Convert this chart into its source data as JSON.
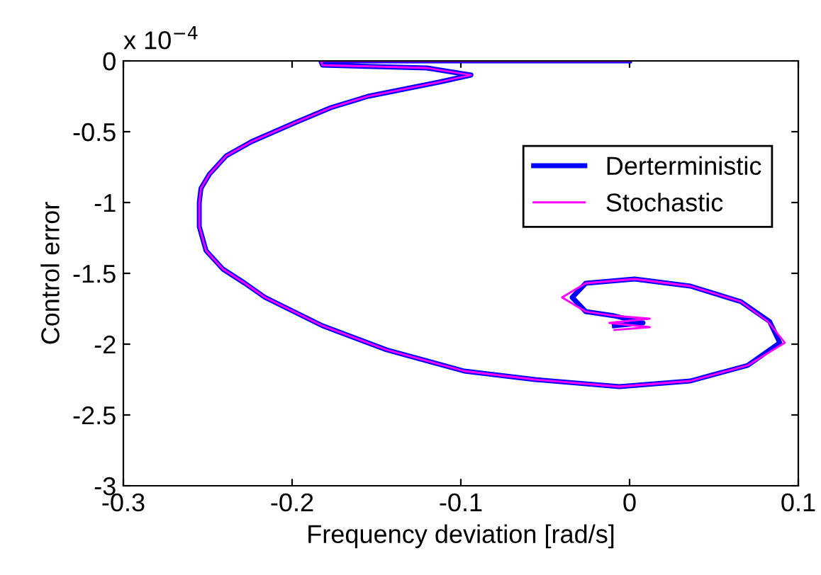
{
  "chart_data": {
    "type": "line",
    "xlabel": "Frequency deviation [rad/s]",
    "ylabel": "Control error",
    "annotations": [
      "x 10$^{−4}$"
    ],
    "xlim": [
      -0.3,
      0.1
    ],
    "xticks": [
      -0.3,
      -0.2,
      -0.1,
      0,
      0.1
    ],
    "ylim": [
      -3,
      0
    ],
    "yticks": [
      -3,
      -2.5,
      -2,
      -1.5,
      -1,
      -0.5,
      0
    ],
    "grid": false,
    "legend": "top right",
    "marker": "none",
    "line_style": "solid",
    "series": [
      {
        "name": "Derterministic",
        "color": "#0000ff",
        "x": [
          0,
          -0.183,
          -0.182,
          -0.12,
          -0.094,
          -0.113,
          -0.155,
          -0.177,
          -0.199,
          -0.224,
          -0.239,
          -0.249,
          -0.254,
          -0.255,
          -0.255,
          -0.251,
          -0.241,
          -0.228,
          -0.216,
          -0.182,
          -0.144,
          -0.098,
          -0.056,
          -0.006,
          0.036,
          0.07,
          0.089,
          0.083,
          0.066,
          0.036,
          0.003,
          -0.026,
          -0.034,
          -0.026,
          -0.009,
          0.008,
          -0.009
        ],
        "values": [
          0,
          0,
          -0.03,
          -0.05,
          -0.1,
          -0.15,
          -0.25,
          -0.33,
          -0.44,
          -0.57,
          -0.67,
          -0.8,
          -0.9,
          -1.0,
          -1.17,
          -1.34,
          -1.47,
          -1.57,
          -1.67,
          -1.87,
          -2.04,
          -2.19,
          -2.25,
          -2.3,
          -2.26,
          -2.15,
          -1.99,
          -1.84,
          -1.7,
          -1.59,
          -1.54,
          -1.57,
          -1.67,
          -1.77,
          -1.8,
          -1.85,
          -1.87
        ]
      },
      {
        "name": "Stochastic",
        "color": "#ff00ff",
        "x": [
          0,
          -0.183,
          -0.182,
          -0.12,
          -0.094,
          -0.113,
          -0.155,
          -0.177,
          -0.199,
          -0.224,
          -0.239,
          -0.249,
          -0.254,
          -0.255,
          -0.255,
          -0.251,
          -0.241,
          -0.228,
          -0.216,
          -0.182,
          -0.144,
          -0.098,
          -0.056,
          -0.006,
          0.036,
          0.07,
          0.092,
          0.082,
          0.066,
          0.036,
          0.003,
          -0.026,
          -0.04,
          -0.026,
          -0.009,
          0.012,
          -0.012,
          0.012,
          -0.009
        ],
        "values": [
          0,
          0,
          -0.03,
          -0.05,
          -0.1,
          -0.15,
          -0.25,
          -0.33,
          -0.44,
          -0.57,
          -0.67,
          -0.8,
          -0.9,
          -1.0,
          -1.17,
          -1.34,
          -1.47,
          -1.57,
          -1.67,
          -1.87,
          -2.04,
          -2.19,
          -2.25,
          -2.3,
          -2.26,
          -2.15,
          -1.99,
          -1.84,
          -1.7,
          -1.59,
          -1.54,
          -1.57,
          -1.67,
          -1.77,
          -1.8,
          -1.82,
          -1.85,
          -1.88,
          -1.9
        ]
      }
    ]
  }
}
